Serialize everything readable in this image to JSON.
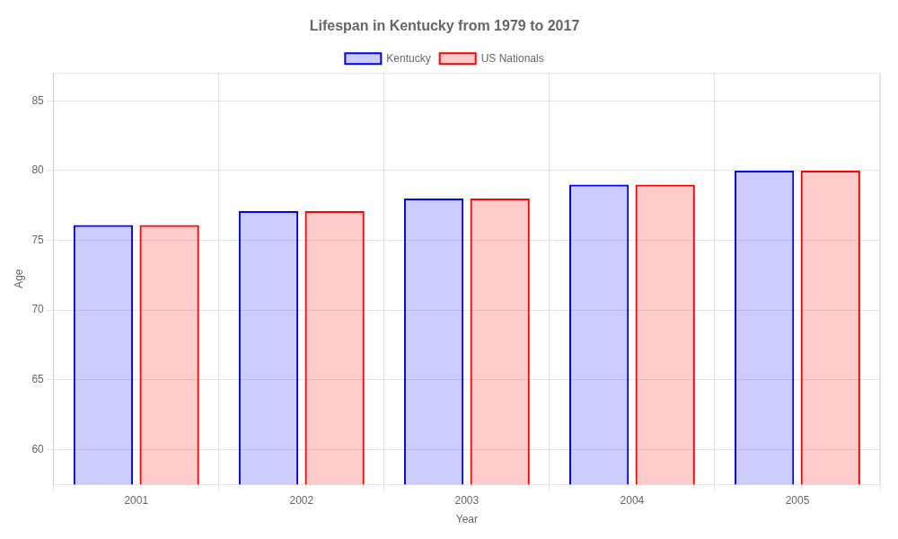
{
  "chart_data": {
    "type": "bar",
    "title": "Lifespan in Kentucky from 1979 to 2017",
    "xlabel": "Year",
    "ylabel": "Age",
    "categories": [
      "2001",
      "2002",
      "2003",
      "2004",
      "2005"
    ],
    "series": [
      {
        "name": "Kentucky",
        "color": "#0000ff",
        "values": [
          76.1,
          77.1,
          78.0,
          79.0,
          80.0
        ]
      },
      {
        "name": "US Nationals",
        "color": "#ff0000",
        "values": [
          76.1,
          77.1,
          78.0,
          79.0,
          80.0
        ]
      }
    ],
    "ylim": [
      57.5,
      87
    ],
    "yticks": [
      60,
      65,
      70,
      75,
      80,
      85
    ],
    "grid": true,
    "legend": "top"
  }
}
